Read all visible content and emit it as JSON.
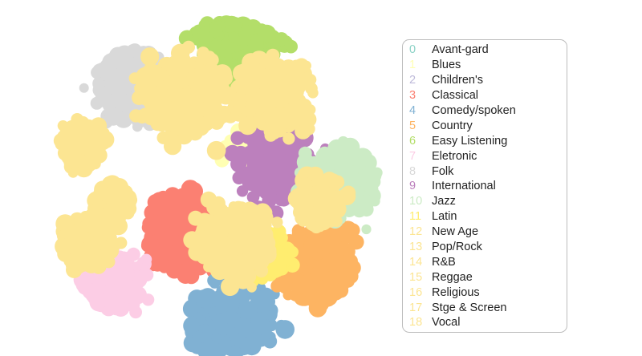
{
  "chart_data": {
    "type": "scatter",
    "title": "",
    "xlabel": "",
    "ylabel": "",
    "grid": false,
    "legend_position": "right",
    "series": [
      {
        "index": "0",
        "name": "Avant-gard",
        "color": "#8dd3c7",
        "centroid": [
          0.62,
          0.78
        ],
        "size": 0.0
      },
      {
        "index": "1",
        "name": "Blues",
        "color": "#ffffb3",
        "centroid": [
          0.22,
          -0.22
        ],
        "size": 0.22
      },
      {
        "index": "2",
        "name": "Children's",
        "color": "#bebada",
        "centroid": [
          0.3,
          -0.55
        ],
        "size": 0.0
      },
      {
        "index": "3",
        "name": "Classical",
        "color": "#fb8072",
        "centroid": [
          -0.18,
          0.28
        ],
        "size": 0.42
      },
      {
        "index": "4",
        "name": "Comedy/spoken",
        "color": "#80b1d3",
        "centroid": [
          0.12,
          0.84
        ],
        "size": 0.42
      },
      {
        "index": "5",
        "name": "Country",
        "color": "#fdb462",
        "centroid": [
          0.63,
          0.48
        ],
        "size": 0.42
      },
      {
        "index": "6",
        "name": "Easy Listening",
        "color": "#b3de69",
        "centroid": [
          0.15,
          -0.82
        ],
        "size": 0.45
      },
      {
        "index": "7",
        "name": "Eletronic",
        "color": "#fccde5",
        "centroid": [
          -0.65,
          0.57
        ],
        "size": 0.36
      },
      {
        "index": "8",
        "name": "Folk",
        "color": "#d9d9d9",
        "centroid": [
          -0.49,
          -0.62
        ],
        "size": 0.38
      },
      {
        "index": "9",
        "name": "International",
        "color": "#bc80bd",
        "centroid": [
          0.39,
          -0.13
        ],
        "size": 0.4
      },
      {
        "index": "10",
        "name": "Jazz",
        "color": "#ccebc5",
        "centroid": [
          0.74,
          -0.02
        ],
        "size": 0.38
      },
      {
        "index": "11",
        "name": "Latin",
        "color": "#ffed6f",
        "centroid": [
          0.3,
          0.42
        ],
        "size": 0.25
      },
      {
        "index": "12",
        "name": "New Age",
        "color": "#fce592",
        "centroid": [
          0.12,
          0.33
        ],
        "size": 0.4
      },
      {
        "index": "13",
        "name": "Pop/Rock",
        "color": "#fce592",
        "centroid": [
          -0.78,
          0.34
        ],
        "size": 0.3
      },
      {
        "index": "14",
        "name": "R&B",
        "color": "#fce592",
        "centroid": [
          -0.18,
          -0.55
        ],
        "size": 0.45
      },
      {
        "index": "15",
        "name": "Reggae",
        "color": "#fce592",
        "centroid": [
          0.35,
          -0.55
        ],
        "size": 0.4
      },
      {
        "index": "16",
        "name": "Religious",
        "color": "#fce592",
        "centroid": [
          -0.8,
          -0.25
        ],
        "size": 0.22
      },
      {
        "index": "17",
        "name": "Stge & Screen",
        "color": "#fce592",
        "centroid": [
          0.62,
          0.1
        ],
        "size": 0.25
      },
      {
        "index": "18",
        "name": "Vocal",
        "color": "#fce592",
        "centroid": [
          -0.62,
          0.1
        ],
        "size": 0.2
      }
    ]
  }
}
